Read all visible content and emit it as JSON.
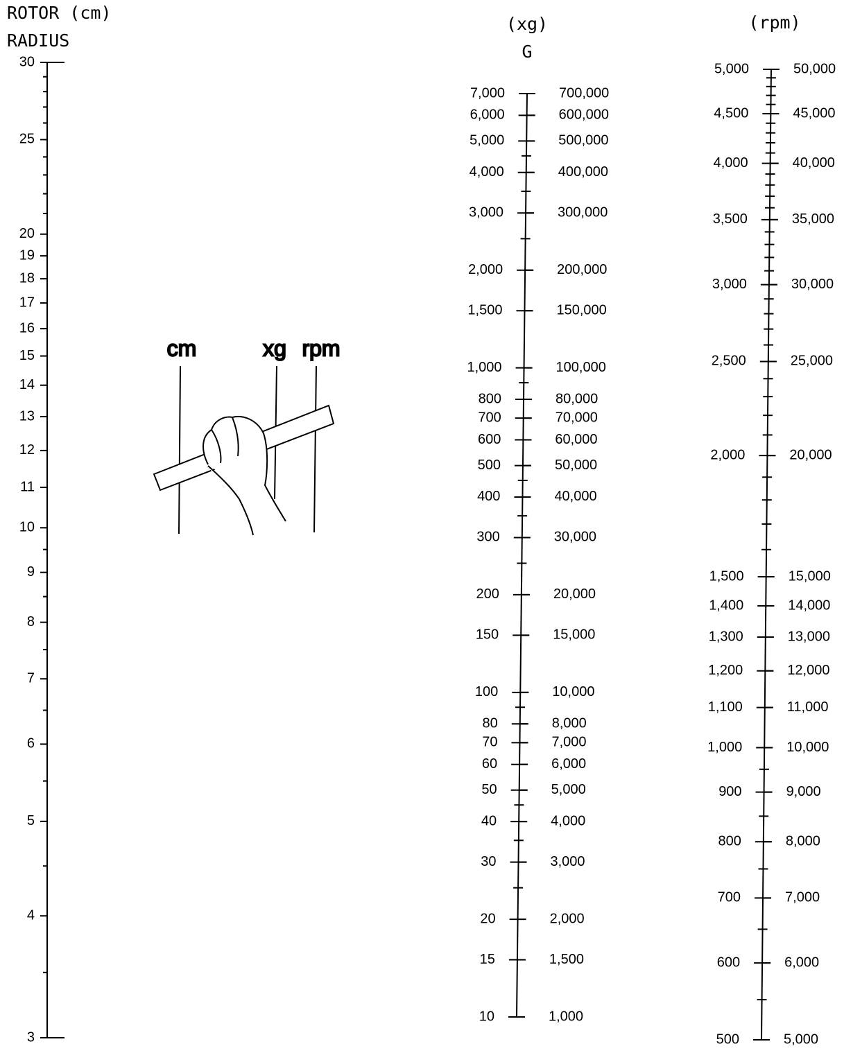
{
  "scales": [
    {
      "title_lines": [
        "ROTOR (cm)",
        "RADIUS"
      ],
      "range": [
        3,
        30
      ],
      "ticks": [
        30,
        25,
        20,
        19,
        18,
        17,
        16,
        15,
        14,
        13,
        12,
        11,
        10,
        9,
        8,
        7,
        6,
        5,
        4,
        3
      ],
      "minor_ticks": [
        29,
        28,
        27,
        26,
        24,
        23,
        22,
        21,
        9.5,
        8.5,
        7.5,
        6.5,
        5.5,
        4.5,
        3.5
      ]
    },
    {
      "title_lines": [
        "(xg)",
        "G"
      ],
      "range": [
        10,
        7000
      ],
      "range_right": [
        1000,
        700000
      ],
      "ticks": [
        {
          "value": 7000,
          "label": "7,000"
        },
        {
          "value": 6000,
          "label": "6,000"
        },
        {
          "value": 5000,
          "label": "5,000"
        },
        {
          "value": 4000,
          "label": "4,000"
        },
        {
          "value": 3000,
          "label": "3,000"
        },
        {
          "value": 2000,
          "label": "2,000"
        },
        {
          "value": 1500,
          "label": "1,500"
        },
        {
          "value": 1000,
          "label": "1,000"
        },
        800,
        700,
        600,
        500,
        400,
        300,
        200,
        150,
        100,
        80,
        70,
        60,
        50,
        40,
        30,
        20,
        15,
        10
      ],
      "ticks_right": [
        {
          "value": 700000,
          "label": "700,000"
        },
        {
          "value": 600000,
          "label": "600,000"
        },
        {
          "value": 500000,
          "label": "500,000"
        },
        {
          "value": 400000,
          "label": "400,000"
        },
        {
          "value": 300000,
          "label": "300,000"
        },
        {
          "value": 200000,
          "label": "200,000"
        },
        {
          "value": 150000,
          "label": "150,000"
        },
        {
          "value": 100000,
          "label": "100,000"
        },
        {
          "value": 80000,
          "label": "80,000"
        },
        {
          "value": 70000,
          "label": "70,000"
        },
        {
          "value": 60000,
          "label": "60,000"
        },
        {
          "value": 50000,
          "label": "50,000"
        },
        {
          "value": 40000,
          "label": "40,000"
        },
        {
          "value": 30000,
          "label": "30,000"
        },
        {
          "value": 20000,
          "label": "20,000"
        },
        {
          "value": 15000,
          "label": "15,000"
        },
        {
          "value": 10000,
          "label": "10,000"
        },
        {
          "value": 8000,
          "label": "8,000"
        },
        {
          "value": 7000,
          "label": "7,000"
        },
        {
          "value": 6000,
          "label": "6,000"
        },
        {
          "value": 5000,
          "label": "5,000"
        },
        {
          "value": 4000,
          "label": "4,000"
        },
        {
          "value": 3000,
          "label": "3,000"
        },
        {
          "value": 2000,
          "label": "2,000"
        },
        {
          "value": 1500,
          "label": "1,500"
        },
        {
          "value": 1000,
          "label": "1,000"
        }
      ],
      "minor_ticks": [
        4500,
        3500,
        2500,
        900,
        450,
        350,
        250,
        90,
        45,
        35,
        25
      ]
    },
    {
      "title_lines": [
        "(rpm)"
      ],
      "range": [
        500,
        5000
      ],
      "range_right": [
        5000,
        50000
      ],
      "ticks": [
        {
          "value": 5000,
          "label": "5,000"
        },
        {
          "value": 4500,
          "label": "4,500"
        },
        {
          "value": 4000,
          "label": "4,000"
        },
        {
          "value": 3500,
          "label": "3,500"
        },
        {
          "value": 3000,
          "label": "3,000"
        },
        {
          "value": 2500,
          "label": "2,500"
        },
        {
          "value": 2000,
          "label": "2,000"
        },
        {
          "value": 1500,
          "label": "1,500"
        },
        {
          "value": 1400,
          "label": "1,400"
        },
        {
          "value": 1300,
          "label": "1,300"
        },
        {
          "value": 1200,
          "label": "1,200"
        },
        {
          "value": 1100,
          "label": "1,100"
        },
        {
          "value": 1000,
          "label": "1,000"
        },
        900,
        800,
        700,
        600,
        500
      ],
      "ticks_right": [
        {
          "value": 50000,
          "label": "50,000"
        },
        {
          "value": 45000,
          "label": "45,000"
        },
        {
          "value": 40000,
          "label": "40,000"
        },
        {
          "value": 35000,
          "label": "35,000"
        },
        {
          "value": 30000,
          "label": "30,000"
        },
        {
          "value": 25000,
          "label": "25,000"
        },
        {
          "value": 20000,
          "label": "20,000"
        },
        {
          "value": 15000,
          "label": "15,000"
        },
        {
          "value": 14000,
          "label": "14,000"
        },
        {
          "value": 13000,
          "label": "13,000"
        },
        {
          "value": 12000,
          "label": "12,000"
        },
        {
          "value": 11000,
          "label": "11,000"
        },
        {
          "value": 10000,
          "label": "10,000"
        },
        {
          "value": 9000,
          "label": "9,000"
        },
        {
          "value": 8000,
          "label": "8,000"
        },
        {
          "value": 7000,
          "label": "7,000"
        },
        {
          "value": 6000,
          "label": "6,000"
        },
        {
          "value": 5000,
          "label": "5,000"
        }
      ],
      "minor_ticks": [
        4900,
        4800,
        4700,
        4600,
        4400,
        4300,
        4200,
        4100,
        3900,
        3800,
        3700,
        3600,
        3400,
        3300,
        3200,
        3100,
        2900,
        2800,
        2700,
        2600,
        2400,
        2300,
        2200,
        2100,
        1900,
        1800,
        1700,
        1600,
        950,
        850,
        750,
        650,
        550
      ]
    }
  ],
  "illustration": {
    "labels": [
      "cm",
      "xg",
      "rpm"
    ]
  }
}
